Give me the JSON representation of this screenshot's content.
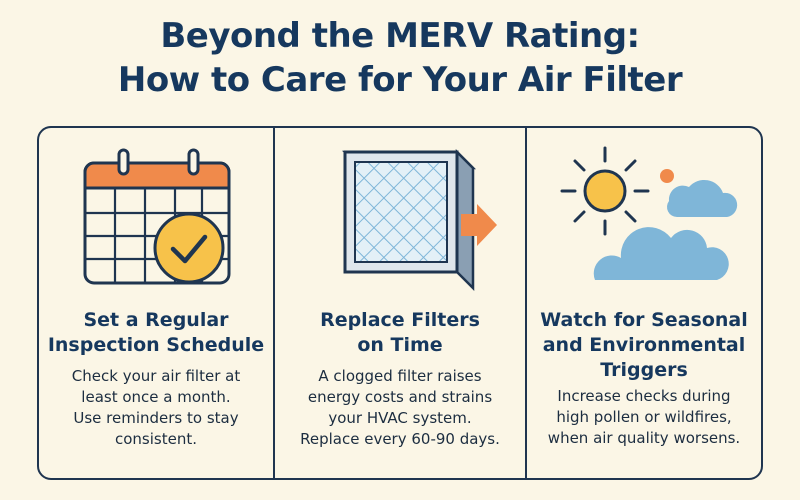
{
  "title": {
    "line1": "Beyond the MERV Rating:",
    "line2": "How to Care for Your Air Filter"
  },
  "colors": {
    "navy": "#16385e",
    "orange": "#f08a4b",
    "yellow": "#f7c24a",
    "sky_blue": "#7fb6d8",
    "background": "#fbf6e6"
  },
  "tips": [
    {
      "icon": "calendar-check-icon",
      "heading": [
        "Set a Regular",
        "Inspection Schedule"
      ],
      "body": [
        "Check your air filter at",
        "least once a month.",
        "Use reminders to stay",
        "consistent."
      ]
    },
    {
      "icon": "air-filter-arrow-icon",
      "heading": [
        "Replace Filters",
        "on Time"
      ],
      "body": [
        "A clogged filter raises",
        "energy costs and strains",
        "your HVAC system.",
        "Replace every 60-90 days."
      ]
    },
    {
      "icon": "sun-clouds-icon",
      "heading": [
        "Watch for Seasonal",
        "and Environmental",
        "Triggers"
      ],
      "body": [
        "Increase checks during",
        "high pollen or wildfires,",
        "when air quality worsens."
      ]
    }
  ]
}
